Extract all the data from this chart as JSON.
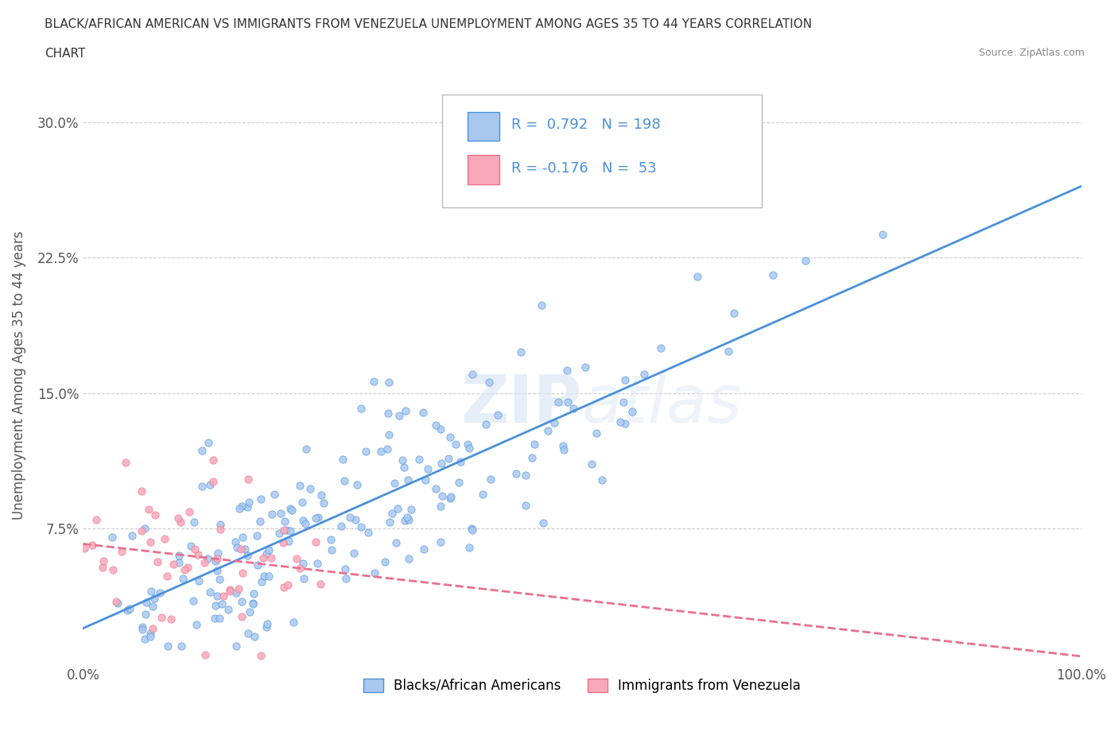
{
  "title_line1": "BLACK/AFRICAN AMERICAN VS IMMIGRANTS FROM VENEZUELA UNEMPLOYMENT AMONG AGES 35 TO 44 YEARS CORRELATION",
  "title_line2": "CHART",
  "source": "Source: ZipAtlas.com",
  "ylabel": "Unemployment Among Ages 35 to 44 years",
  "xlim": [
    0.0,
    1.0
  ],
  "ylim": [
    0.0,
    0.32
  ],
  "yticks": [
    0.0,
    0.075,
    0.15,
    0.225,
    0.3
  ],
  "ytick_labels": [
    "",
    "7.5%",
    "15.0%",
    "22.5%",
    "30.0%"
  ],
  "xtick_labels": [
    "0.0%",
    "100.0%"
  ],
  "blue_R": 0.792,
  "blue_N": 198,
  "pink_R": -0.176,
  "pink_N": 53,
  "blue_scatter_color": "#a8c8f0",
  "pink_scatter_color": "#f8a8b8",
  "blue_line_color": "#4a90d9",
  "pink_line_color": "#e87090",
  "watermark_zip": "ZIP",
  "watermark_atlas": "atlas",
  "legend_label_blue": "Blacks/African Americans",
  "legend_label_pink": "Immigrants from Venezuela",
  "background_color": "#ffffff",
  "grid_color": "#cccccc",
  "title_color": "#333333",
  "axis_color": "#555555"
}
